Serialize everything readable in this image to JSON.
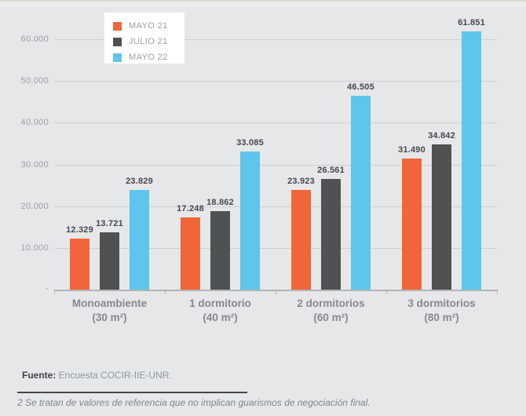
{
  "page": {
    "background": "#e6e7e8"
  },
  "legend": {
    "items": [
      {
        "label": "MAYO 21",
        "color": "#f0653a"
      },
      {
        "label": "JULIO 21",
        "color": "#505153"
      },
      {
        "label": "MAYO 22",
        "color": "#5ec6eb"
      }
    ]
  },
  "chart_data": {
    "type": "bar",
    "title": "",
    "categories": [
      {
        "line1": "Monoambiente",
        "line2": "(30 m²)"
      },
      {
        "line1": "1 dormitorio",
        "line2": "(40 m²)"
      },
      {
        "line1": "2 dormitorios",
        "line2": "(60 m²)"
      },
      {
        "line1": "3 dormitorios",
        "line2": "(80 m²)"
      }
    ],
    "series": [
      {
        "name": "MAYO 21",
        "color": "#f0653a",
        "values": [
          12329,
          17248,
          23923,
          31490
        ],
        "labels": [
          "12.329",
          "17.248",
          "23.923",
          "31.490"
        ]
      },
      {
        "name": "JULIO 21",
        "color": "#505153",
        "values": [
          13721,
          18862,
          26561,
          34842
        ],
        "labels": [
          "13.721",
          "18.862",
          "26.561",
          "34.842"
        ]
      },
      {
        "name": "MAYO 22",
        "color": "#5ec6eb",
        "values": [
          23829,
          33085,
          46505,
          61851
        ],
        "labels": [
          "23.829",
          "33.085",
          "46.505",
          "61.851"
        ]
      }
    ],
    "y_axis": {
      "ticks": [
        10000,
        20000,
        30000,
        40000,
        50000,
        60000
      ],
      "tick_labels": [
        "10.000",
        "20.000",
        "30.000",
        "40.000",
        "50.000",
        "60.000"
      ],
      "zero_label": "-",
      "ylim": [
        0,
        63000
      ]
    },
    "grid": true,
    "legend_position": "top-left-overlay"
  },
  "footer": {
    "source_label": "Fuente:",
    "source_text": " Encuesta COCIR-IIE-UNR.",
    "note": "2 Se tratan de valores de referencia que no implican guarismos de negociación final."
  }
}
